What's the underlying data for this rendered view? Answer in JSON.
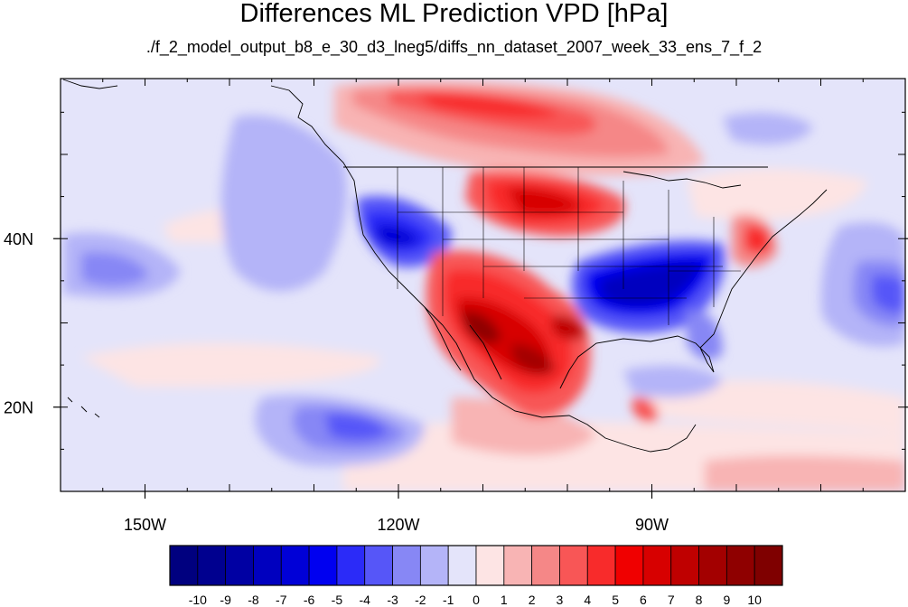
{
  "title": "Differences ML Prediction VPD [hPa]",
  "subtitle": "./f_2_model_output_b8_e_30_d3_lneg5/diffs_nn_dataset_2007_week_33_ens_7_f_2",
  "map": {
    "lon_range": [
      -160,
      -60
    ],
    "lat_range": [
      10,
      59
    ],
    "lon_ticks": [
      {
        "value": -150,
        "label": "150W"
      },
      {
        "value": -120,
        "label": "120W"
      },
      {
        "value": -90,
        "label": "90W"
      }
    ],
    "lat_ticks": [
      {
        "value": 40,
        "label": "40N"
      },
      {
        "value": 20,
        "label": "20N"
      }
    ]
  },
  "colorbar": {
    "labels": [
      "-10",
      "-9",
      "-8",
      "-7",
      "-6",
      "-5",
      "-4",
      "-3",
      "-2",
      "-1",
      "0",
      "1",
      "2",
      "3",
      "4",
      "5",
      "6",
      "7",
      "8",
      "9",
      "10"
    ],
    "colors": [
      "#00007f",
      "#00008f",
      "#0000a3",
      "#0000bf",
      "#0000d7",
      "#0000f0",
      "#2b2bf8",
      "#5656f8",
      "#8787f5",
      "#b4b4f8",
      "#e4e4fa",
      "#fde4e4",
      "#f8b4b4",
      "#f58787",
      "#f85656",
      "#f82b2b",
      "#f00000",
      "#d70000",
      "#bf0000",
      "#a30000",
      "#8f0000",
      "#7f0000"
    ]
  }
}
